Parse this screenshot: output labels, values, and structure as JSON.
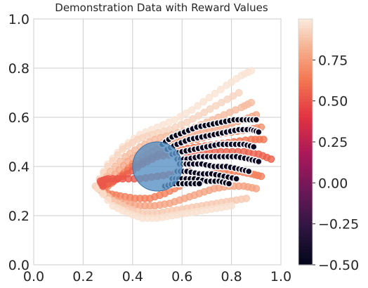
{
  "chart_data": {
    "type": "scatter",
    "title": "Demonstration Data with Reward Values",
    "xlabel": "",
    "ylabel": "",
    "xlim": [
      0.0,
      1.0
    ],
    "ylim": [
      0.0,
      1.0
    ],
    "grid": true,
    "x_ticks": [
      "0.0",
      "0.2",
      "0.4",
      "0.6",
      "0.8",
      "1.0"
    ],
    "y_ticks": [
      "0.0",
      "0.2",
      "0.4",
      "0.6",
      "0.8",
      "1.0"
    ],
    "colorbar": {
      "colormap": "rocket",
      "range": [
        -0.5,
        1.0
      ],
      "ticks": [
        -0.5,
        -0.25,
        0.0,
        0.25,
        0.5,
        0.75
      ],
      "tick_labels": [
        "−0.50",
        "−0.25",
        "0.00",
        "0.25",
        "0.50",
        "0.75"
      ]
    },
    "obstacle": {
      "center": [
        0.5,
        0.4
      ],
      "radius": 0.1,
      "color": "#5b94c4"
    },
    "trajectories": [
      {
        "x": [
          0.25,
          0.3,
          0.36,
          0.43,
          0.5,
          0.57,
          0.64,
          0.71,
          0.78,
          0.84,
          0.88
        ],
        "y": [
          0.32,
          0.41,
          0.48,
          0.53,
          0.56,
          0.59,
          0.63,
          0.68,
          0.73,
          0.77,
          0.79
        ],
        "value": 0.98
      },
      {
        "x": [
          0.25,
          0.3,
          0.36,
          0.42,
          0.48,
          0.55,
          0.62,
          0.69,
          0.76,
          0.83
        ],
        "y": [
          0.32,
          0.4,
          0.47,
          0.51,
          0.53,
          0.55,
          0.58,
          0.62,
          0.66,
          0.7
        ],
        "value": 0.93
      },
      {
        "x": [
          0.27,
          0.31,
          0.37,
          0.43,
          0.49,
          0.56,
          0.63,
          0.7,
          0.77,
          0.84,
          0.88
        ],
        "y": [
          0.32,
          0.38,
          0.44,
          0.48,
          0.51,
          0.53,
          0.55,
          0.58,
          0.61,
          0.64,
          0.66
        ],
        "value": 0.86
      },
      {
        "x": [
          0.28,
          0.33,
          0.38,
          0.44,
          0.5,
          0.57,
          0.64,
          0.71,
          0.78,
          0.85,
          0.9
        ],
        "y": [
          0.32,
          0.37,
          0.42,
          0.46,
          0.49,
          0.51,
          0.53,
          0.55,
          0.57,
          0.59,
          0.61
        ],
        "value": 0.8
      },
      {
        "x": [
          0.3,
          0.35,
          0.4,
          0.46,
          0.52,
          0.59,
          0.66,
          0.73,
          0.8,
          0.87,
          0.92
        ],
        "y": [
          0.32,
          0.36,
          0.41,
          0.45,
          0.48,
          0.5,
          0.51,
          0.53,
          0.54,
          0.55,
          0.56
        ],
        "value": 0.72
      },
      {
        "x": [
          0.29,
          0.34,
          0.4,
          0.46,
          0.53,
          0.6,
          0.67,
          0.74,
          0.81,
          0.88,
          0.93
        ],
        "y": [
          0.32,
          0.35,
          0.4,
          0.43,
          0.46,
          0.47,
          0.48,
          0.49,
          0.5,
          0.51,
          0.51
        ],
        "value": 0.62
      },
      {
        "x": [
          0.26,
          0.32,
          0.38,
          0.44,
          0.5,
          0.57,
          0.64,
          0.71,
          0.78,
          0.85,
          0.91,
          0.96
        ],
        "y": [
          0.31,
          0.34,
          0.37,
          0.41,
          0.44,
          0.45,
          0.45,
          0.46,
          0.46,
          0.46,
          0.45,
          0.43
        ],
        "value": 0.55
      },
      {
        "x": [
          0.26,
          0.3,
          0.35,
          0.41,
          0.47,
          0.53,
          0.59,
          0.65,
          0.71,
          0.77,
          0.83,
          0.88,
          0.92
        ],
        "y": [
          0.31,
          0.29,
          0.28,
          0.27,
          0.27,
          0.29,
          0.32,
          0.35,
          0.37,
          0.38,
          0.38,
          0.37,
          0.36
        ],
        "value": 0.66
      },
      {
        "x": [
          0.26,
          0.31,
          0.37,
          0.43,
          0.49,
          0.55,
          0.61,
          0.67,
          0.73,
          0.79,
          0.85,
          0.9
        ],
        "y": [
          0.31,
          0.27,
          0.25,
          0.24,
          0.24,
          0.25,
          0.27,
          0.29,
          0.31,
          0.32,
          0.32,
          0.31
        ],
        "value": 0.78
      },
      {
        "x": [
          0.26,
          0.32,
          0.38,
          0.44,
          0.5,
          0.56,
          0.62,
          0.68,
          0.74,
          0.8,
          0.86
        ],
        "y": [
          0.31,
          0.26,
          0.23,
          0.21,
          0.21,
          0.22,
          0.23,
          0.24,
          0.25,
          0.26,
          0.27
        ],
        "value": 0.9
      },
      {
        "x": [
          0.26,
          0.32,
          0.38,
          0.44,
          0.5,
          0.56,
          0.62,
          0.68,
          0.74,
          0.8
        ],
        "y": [
          0.31,
          0.24,
          0.21,
          0.19,
          0.19,
          0.2,
          0.21,
          0.22,
          0.23,
          0.24
        ],
        "value": 0.97
      },
      {
        "x": [
          0.28,
          0.27,
          0.3,
          0.36,
          0.43,
          0.5,
          0.57,
          0.63
        ],
        "y": [
          0.32,
          0.34,
          0.35,
          0.35,
          0.35,
          0.36,
          0.37,
          0.38
        ],
        "value": 0.52
      },
      {
        "x": [
          0.52,
          0.56,
          0.61,
          0.66,
          0.71,
          0.76,
          0.81,
          0.86,
          0.9
        ],
        "y": [
          0.49,
          0.52,
          0.54,
          0.56,
          0.57,
          0.58,
          0.59,
          0.59,
          0.59
        ],
        "value": -0.48
      },
      {
        "x": [
          0.54,
          0.58,
          0.63,
          0.68,
          0.73,
          0.78,
          0.83,
          0.88,
          0.91
        ],
        "y": [
          0.47,
          0.49,
          0.51,
          0.52,
          0.53,
          0.54,
          0.55,
          0.55,
          0.54
        ],
        "value": -0.46
      },
      {
        "x": [
          0.56,
          0.6,
          0.65,
          0.7,
          0.75,
          0.8,
          0.85,
          0.89
        ],
        "y": [
          0.45,
          0.46,
          0.47,
          0.48,
          0.49,
          0.49,
          0.49,
          0.48
        ],
        "value": -0.45
      },
      {
        "x": [
          0.58,
          0.62,
          0.67,
          0.72,
          0.77,
          0.82,
          0.87,
          0.91
        ],
        "y": [
          0.43,
          0.43,
          0.44,
          0.44,
          0.44,
          0.44,
          0.43,
          0.42
        ],
        "value": -0.44
      },
      {
        "x": [
          0.59,
          0.63,
          0.68,
          0.73,
          0.78,
          0.83,
          0.87
        ],
        "y": [
          0.41,
          0.41,
          0.41,
          0.4,
          0.4,
          0.39,
          0.38
        ],
        "value": -0.45
      },
      {
        "x": [
          0.58,
          0.62,
          0.67,
          0.72,
          0.77,
          0.82
        ],
        "y": [
          0.38,
          0.38,
          0.37,
          0.37,
          0.36,
          0.35
        ],
        "value": -0.47
      },
      {
        "x": [
          0.56,
          0.6,
          0.65,
          0.7,
          0.75,
          0.79
        ],
        "y": [
          0.35,
          0.35,
          0.35,
          0.34,
          0.34,
          0.33
        ],
        "value": -0.48
      },
      {
        "x": [
          0.53,
          0.57,
          0.62,
          0.67
        ],
        "y": [
          0.32,
          0.33,
          0.33,
          0.33
        ],
        "value": -0.49
      }
    ]
  }
}
